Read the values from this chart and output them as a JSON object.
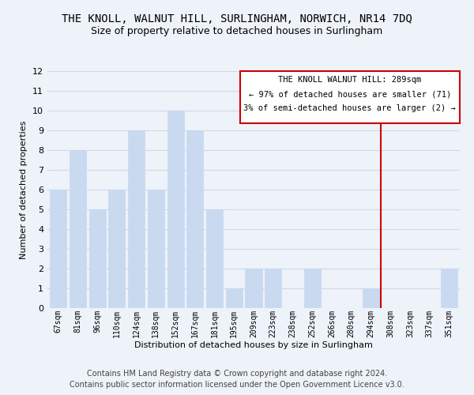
{
  "title": "THE KNOLL, WALNUT HILL, SURLINGHAM, NORWICH, NR14 7DQ",
  "subtitle": "Size of property relative to detached houses in Surlingham",
  "xlabel": "Distribution of detached houses by size in Surlingham",
  "ylabel": "Number of detached properties",
  "bar_labels": [
    "67sqm",
    "81sqm",
    "96sqm",
    "110sqm",
    "124sqm",
    "138sqm",
    "152sqm",
    "167sqm",
    "181sqm",
    "195sqm",
    "209sqm",
    "223sqm",
    "238sqm",
    "252sqm",
    "266sqm",
    "280sqm",
    "294sqm",
    "308sqm",
    "323sqm",
    "337sqm",
    "351sqm"
  ],
  "bar_values": [
    6,
    8,
    5,
    6,
    9,
    6,
    10,
    9,
    5,
    1,
    2,
    2,
    0,
    2,
    0,
    0,
    1,
    0,
    0,
    0,
    2
  ],
  "bar_color": "#c8d9f0",
  "bar_edge_color": "#c8d9f0",
  "vline_x": 16.5,
  "vline_color": "#cc0000",
  "annotation_title": "THE KNOLL WALNUT HILL: 289sqm",
  "annotation_line1": "← 97% of detached houses are smaller (71)",
  "annotation_line2": "3% of semi-detached houses are larger (2) →",
  "annotation_box_color": "#ffffff",
  "annotation_box_edge": "#cc0000",
  "ylim": [
    0,
    12
  ],
  "yticks": [
    0,
    1,
    2,
    3,
    4,
    5,
    6,
    7,
    8,
    9,
    10,
    11,
    12
  ],
  "footer1": "Contains HM Land Registry data © Crown copyright and database right 2024.",
  "footer2": "Contains public sector information licensed under the Open Government Licence v3.0.",
  "background_color": "#eef2f9",
  "grid_color": "#d0d8e8",
  "title_fontsize": 10,
  "subtitle_fontsize": 9,
  "axis_label_fontsize": 8,
  "tick_fontsize": 7,
  "footer_fontsize": 7
}
